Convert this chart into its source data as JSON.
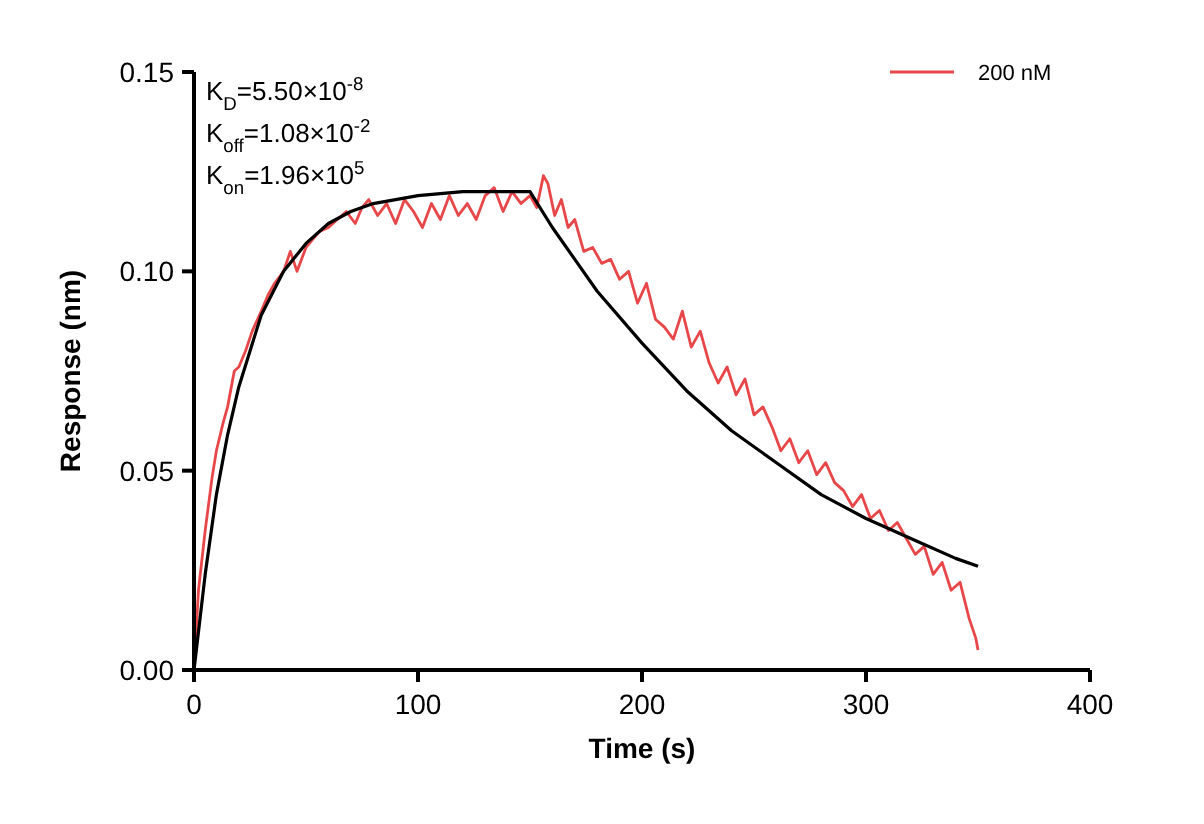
{
  "chart_data": {
    "type": "line",
    "xlabel": "Time (s)",
    "ylabel": "Response (nm)",
    "xlim": [
      0,
      400
    ],
    "ylim": [
      0,
      0.15
    ],
    "xticks": [
      0,
      100,
      200,
      300,
      400
    ],
    "yticks": [
      {
        "value": 0,
        "label": "0.00"
      },
      {
        "value": 0.05,
        "label": "0.05"
      },
      {
        "value": 0.1,
        "label": "0.10"
      },
      {
        "value": 0.15,
        "label": "0.15"
      }
    ],
    "grid": false,
    "legend": "top right",
    "line_style": "solid",
    "marker": "none",
    "annotations": [
      "K$_{D}$=5.50×10$^{-8}$",
      "K$_{off}$=1.08×10$^{-2}$",
      "K$_{on}$=1.96×10$^{5}$"
    ],
    "series": [
      {
        "name": "200 nM",
        "color": "#e8474a",
        "x": [
          0,
          2,
          5,
          8,
          10,
          13,
          15,
          18,
          20,
          23,
          26,
          30,
          33,
          36,
          40,
          43,
          46,
          50,
          53,
          56,
          60,
          64,
          68,
          72,
          75,
          78,
          82,
          86,
          90,
          94,
          98,
          102,
          106,
          110,
          114,
          118,
          122,
          126,
          130,
          134,
          138,
          142,
          146,
          150,
          153,
          156,
          158,
          161,
          164,
          167,
          170,
          174,
          178,
          182,
          186,
          190,
          194,
          198,
          202,
          206,
          210,
          214,
          218,
          222,
          226,
          230,
          234,
          238,
          242,
          246,
          250,
          254,
          258,
          262,
          266,
          270,
          274,
          278,
          282,
          286,
          290,
          294,
          298,
          302,
          306,
          310,
          314,
          318,
          322,
          326,
          330,
          334,
          338,
          342,
          346,
          349,
          350
        ],
        "values": [
          0,
          0.02,
          0.035,
          0.048,
          0.055,
          0.062,
          0.066,
          0.075,
          0.076,
          0.08,
          0.085,
          0.09,
          0.094,
          0.097,
          0.1,
          0.105,
          0.1,
          0.106,
          0.108,
          0.11,
          0.111,
          0.113,
          0.115,
          0.112,
          0.116,
          0.118,
          0.114,
          0.117,
          0.112,
          0.118,
          0.115,
          0.111,
          0.117,
          0.113,
          0.119,
          0.114,
          0.117,
          0.113,
          0.119,
          0.121,
          0.115,
          0.12,
          0.117,
          0.119,
          0.116,
          0.124,
          0.122,
          0.114,
          0.118,
          0.111,
          0.113,
          0.105,
          0.106,
          0.102,
          0.103,
          0.098,
          0.1,
          0.092,
          0.097,
          0.088,
          0.086,
          0.083,
          0.09,
          0.081,
          0.085,
          0.077,
          0.072,
          0.076,
          0.069,
          0.073,
          0.064,
          0.066,
          0.061,
          0.055,
          0.058,
          0.052,
          0.055,
          0.049,
          0.052,
          0.047,
          0.045,
          0.041,
          0.044,
          0.038,
          0.04,
          0.035,
          0.037,
          0.033,
          0.029,
          0.031,
          0.024,
          0.027,
          0.02,
          0.022,
          0.013,
          0.008,
          0.005
        ]
      },
      {
        "color": "#000000",
        "x": [
          0,
          5,
          10,
          15,
          20,
          30,
          40,
          50,
          60,
          70,
          80,
          90,
          100,
          120,
          150,
          160,
          170,
          180,
          200,
          220,
          240,
          260,
          280,
          300,
          320,
          340,
          350
        ],
        "values": [
          0,
          0.024,
          0.044,
          0.059,
          0.071,
          0.089,
          0.1,
          0.107,
          0.112,
          0.115,
          0.117,
          0.118,
          0.119,
          0.12,
          0.12,
          0.111,
          0.103,
          0.095,
          0.082,
          0.07,
          0.06,
          0.052,
          0.044,
          0.038,
          0.033,
          0.028,
          0.026
        ]
      }
    ]
  }
}
